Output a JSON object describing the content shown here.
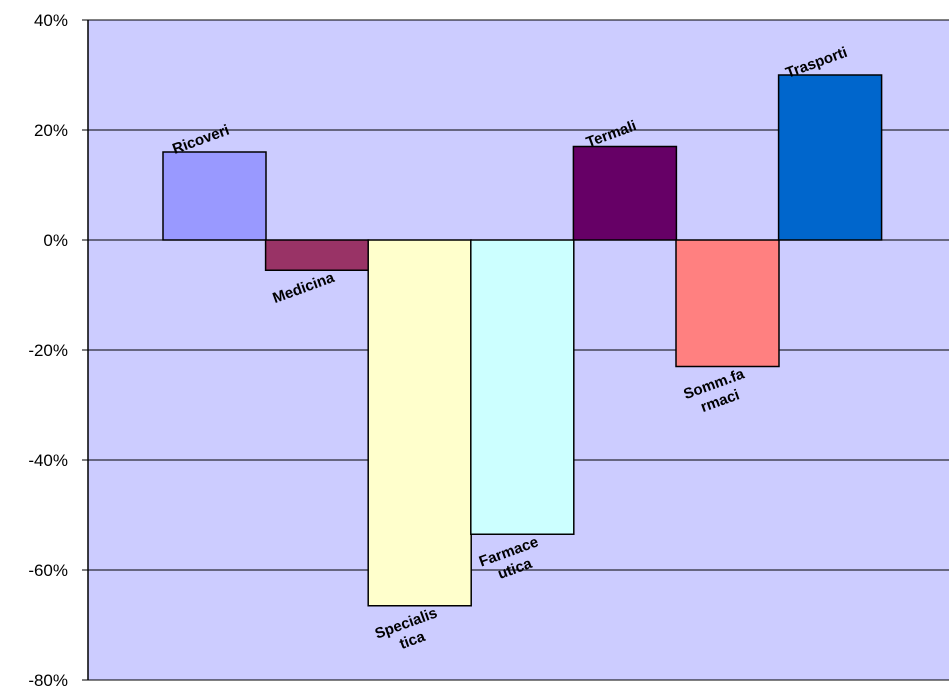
{
  "chart_data": {
    "type": "bar",
    "title": "",
    "xlabel": "",
    "ylabel": "",
    "ylim": [
      -80,
      40
    ],
    "yticks": [
      40,
      20,
      0,
      -20,
      -40,
      -60,
      -80
    ],
    "ytick_labels": [
      "40%",
      "20%",
      "0%",
      "-20%",
      "-40%",
      "-60%",
      "-80%"
    ],
    "grid": true,
    "background_color": "#ccccff",
    "categories": [
      "Ricoveri",
      "Medicina",
      "Specialistica",
      "Farmaceutica",
      "Termali",
      "Somm.farmaci",
      "Trasporti"
    ],
    "label_lines": [
      [
        "Ricoveri"
      ],
      [
        "Medicina"
      ],
      [
        "Specialis",
        "tica"
      ],
      [
        "Farmace",
        "utica"
      ],
      [
        "Termali"
      ],
      [
        "Somm.fa",
        "rmaci"
      ],
      [
        "Trasporti"
      ]
    ],
    "values": [
      16,
      -5.5,
      -66.5,
      -53.5,
      17,
      -23,
      30
    ],
    "colors": [
      "#9999ff",
      "#993366",
      "#ffffcc",
      "#ccffff",
      "#660066",
      "#ff8080",
      "#0066cc"
    ]
  }
}
